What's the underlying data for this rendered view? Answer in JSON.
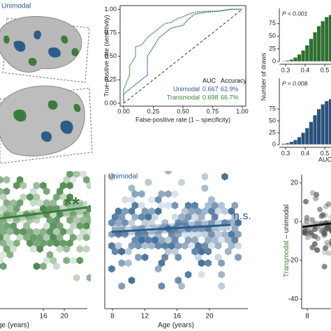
{
  "brain": {
    "label": "Unimodal"
  },
  "roc": {
    "ylabel": "True-positive rate (sensitivity)",
    "xlabel": "False-positive rate (1 – specificity)",
    "xlim": [
      -0.03,
      1.03
    ],
    "ylim": [
      -0.03,
      1.04
    ],
    "xticks": [
      {
        "value": 0,
        "label": "0.00"
      },
      {
        "value": 0.25,
        "label": "0.25"
      },
      {
        "value": 0.5,
        "label": "0.50"
      },
      {
        "value": 0.75,
        "label": "0.75"
      },
      {
        "value": 1,
        "label": "1.00"
      }
    ],
    "yticks": [
      {
        "value": 0,
        "label": "0.00"
      },
      {
        "value": 0.25,
        "label": "0.25"
      },
      {
        "value": 0.5,
        "label": "0.50"
      },
      {
        "value": 0.75,
        "label": "0.75"
      },
      {
        "value": 1,
        "label": "1.00"
      }
    ],
    "legend_header": [
      "AUC",
      "Accuracy"
    ],
    "series": [
      {
        "name": "Unimodal",
        "color": "#2d5d8a",
        "auc": 0.667,
        "accuracy": "62.9%",
        "x": [
          0,
          0,
          0.05,
          0.1,
          0.15,
          0.2,
          0.2,
          0.25,
          0.3,
          0.35,
          0.4,
          0.5,
          0.55,
          0.6,
          0.7,
          0.8,
          0.9,
          1
        ],
        "y": [
          0,
          0.1,
          0.15,
          0.2,
          0.25,
          0.3,
          0.5,
          0.6,
          0.7,
          0.75,
          0.8,
          0.83,
          0.9,
          0.95,
          0.97,
          0.98,
          1,
          1
        ]
      },
      {
        "name": "Transmodal",
        "color": "#3a7d3a",
        "auc": 0.698,
        "accuracy": "66.7%",
        "x": [
          0,
          0,
          0.05,
          0.05,
          0.1,
          0.1,
          0.15,
          0.2,
          0.25,
          0.3,
          0.35,
          0.4,
          0.45,
          0.5,
          0.55,
          0.6,
          0.7,
          0.8,
          0.9,
          1
        ],
        "y": [
          0,
          0.15,
          0.3,
          0.4,
          0.5,
          0.6,
          0.62,
          0.7,
          0.75,
          0.8,
          0.85,
          0.86,
          0.9,
          0.92,
          0.95,
          0.97,
          0.98,
          0.98,
          1,
          1
        ]
      }
    ]
  },
  "hist": {
    "ylabel": "Number of draws",
    "xlabel": "AUC",
    "xlim": [
      0.268,
      0.532
    ],
    "xticks": [
      0.3,
      0.4,
      0.5
    ],
    "panels": [
      {
        "annotation": "P < 0.001",
        "color": "#2f6e2f",
        "ylim": [
          0,
          105
        ],
        "yticks": [
          0,
          25,
          50,
          75
        ],
        "bins": [
          0.28,
          0.3,
          0.32,
          0.34,
          0.36,
          0.38,
          0.4,
          0.42,
          0.44,
          0.46,
          0.48,
          0.5,
          0.52,
          0.54
        ],
        "counts": [
          1,
          2,
          4,
          8,
          14,
          22,
          32,
          45,
          58,
          70,
          80,
          88,
          92
        ]
      },
      {
        "annotation": "P = 0.008",
        "color": "#2a527d",
        "ylim": [
          0,
          140
        ],
        "yticks": [
          0,
          25,
          50,
          75
        ],
        "bins": [
          0.28,
          0.3,
          0.32,
          0.34,
          0.36,
          0.38,
          0.4,
          0.42,
          0.44,
          0.46,
          0.48,
          0.5,
          0.52,
          0.54
        ],
        "counts": [
          2,
          3,
          6,
          10,
          16,
          25,
          35,
          48,
          62,
          75,
          85,
          92,
          96
        ]
      }
    ]
  },
  "age_left": {
    "xlabel": "Age (years)",
    "xlim": [
      7.7,
      24.4
    ],
    "xticks": [
      16,
      20
    ],
    "annotation": "**"
  },
  "age_mid": {
    "title": "Unimodal",
    "xlabel": "Age (years)",
    "xlim": [
      7.05,
      24.75
    ],
    "xticks": [
      8,
      12,
      16,
      20
    ],
    "annotation": "n.s."
  },
  "diff": {
    "ylabel": [
      "Transmodal",
      " – unimodal"
    ],
    "xlim": [
      7.14,
      11.6
    ],
    "ylim": [
      -45,
      24.3
    ],
    "xticks": [
      8
    ],
    "yticks": [
      20,
      0,
      -20,
      -40
    ]
  }
}
